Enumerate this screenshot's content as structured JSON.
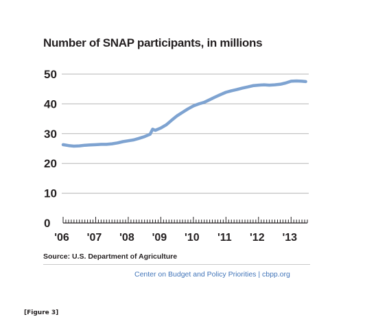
{
  "chart_data": {
    "type": "line",
    "title": "Number of SNAP participants, in millions",
    "xlabel": "",
    "ylabel": "",
    "source": "Source: U.S. Department of Agriculture",
    "credit": "Center on Budget and Policy Priorities | cbpp.org",
    "caption": "[Figure 3]",
    "ylim": [
      0,
      50
    ],
    "yticks": [
      0,
      10,
      20,
      30,
      40,
      50
    ],
    "ytick_labels": [
      "0",
      "10",
      "20",
      "30",
      "40",
      "50"
    ],
    "xticks": [
      2006,
      2007,
      2008,
      2009,
      2010,
      2011,
      2012,
      2013
    ],
    "xtick_labels": [
      "'06",
      "'07",
      "'08",
      "'09",
      "'10",
      "'11",
      "'12",
      "'13"
    ],
    "xlim": [
      2006,
      2013.5
    ],
    "grid": true,
    "legend": "none",
    "line_color": "#7ea3d1",
    "series": [
      {
        "x": [
          2006.0,
          2006.17,
          2006.33,
          2006.5,
          2006.67,
          2006.83,
          2007.0,
          2007.17,
          2007.33,
          2007.5,
          2007.67,
          2007.83,
          2008.0,
          2008.17,
          2008.33,
          2008.5,
          2008.67,
          2008.75,
          2008.83,
          2009.0,
          2009.17,
          2009.33,
          2009.5,
          2009.67,
          2009.83,
          2010.0,
          2010.17,
          2010.33,
          2010.5,
          2010.67,
          2010.83,
          2011.0,
          2011.17,
          2011.33,
          2011.5,
          2011.67,
          2011.83,
          2012.0,
          2012.17,
          2012.33,
          2012.5,
          2012.67,
          2012.83,
          2013.0,
          2013.17,
          2013.33,
          2013.45
        ],
        "y": [
          26.3,
          26.0,
          25.8,
          25.9,
          26.1,
          26.2,
          26.3,
          26.4,
          26.4,
          26.6,
          26.9,
          27.3,
          27.6,
          27.9,
          28.4,
          29.0,
          29.8,
          31.5,
          31.1,
          31.9,
          33.0,
          34.5,
          36.0,
          37.2,
          38.3,
          39.3,
          40.0,
          40.5,
          41.4,
          42.3,
          43.1,
          43.9,
          44.4,
          44.8,
          45.3,
          45.7,
          46.1,
          46.3,
          46.4,
          46.3,
          46.4,
          46.6,
          47.0,
          47.6,
          47.7,
          47.6,
          47.5
        ]
      }
    ]
  }
}
